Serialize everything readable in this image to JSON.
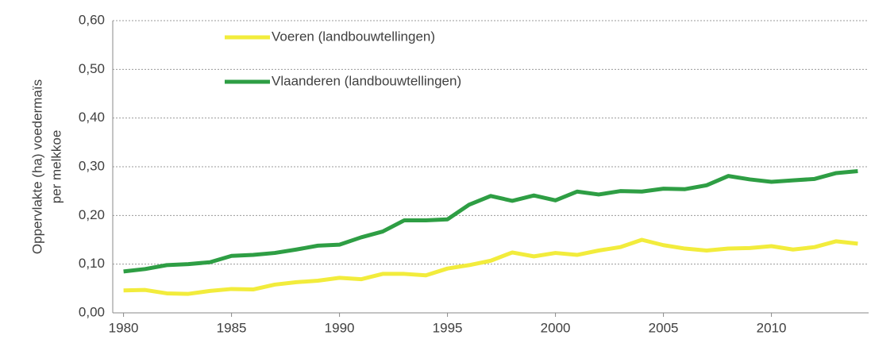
{
  "chart_data": {
    "type": "line",
    "ylabel": [
      "Oppervlakte (ha) voedermaïs",
      "per melkkoe"
    ],
    "x": [
      1980,
      1981,
      1982,
      1983,
      1984,
      1985,
      1986,
      1987,
      1988,
      1989,
      1990,
      1991,
      1992,
      1993,
      1994,
      1995,
      1996,
      1997,
      1998,
      1999,
      2000,
      2001,
      2002,
      2003,
      2004,
      2005,
      2006,
      2007,
      2008,
      2009,
      2010,
      2011,
      2012,
      2013,
      2014
    ],
    "series": [
      {
        "name": "Voeren (landbouwtellingen)",
        "color": "#f2ec3c",
        "values": [
          0.046,
          0.047,
          0.04,
          0.039,
          0.045,
          0.049,
          0.048,
          0.058,
          0.063,
          0.066,
          0.072,
          0.069,
          0.08,
          0.08,
          0.077,
          0.091,
          0.098,
          0.107,
          0.124,
          0.116,
          0.123,
          0.119,
          0.128,
          0.135,
          0.15,
          0.139,
          0.132,
          0.128,
          0.132,
          0.133,
          0.137,
          0.13,
          0.135,
          0.147,
          0.142
        ]
      },
      {
        "name": "Vlaanderen (landbouwtellingen)",
        "color": "#2e9e44",
        "values": [
          0.085,
          0.09,
          0.098,
          0.1,
          0.104,
          0.117,
          0.119,
          0.123,
          0.13,
          0.138,
          0.14,
          0.155,
          0.167,
          0.19,
          0.19,
          0.192,
          0.222,
          0.24,
          0.23,
          0.241,
          0.231,
          0.249,
          0.243,
          0.25,
          0.249,
          0.255,
          0.254,
          0.262,
          0.281,
          0.274,
          0.269,
          0.272,
          0.275,
          0.287,
          0.291
        ]
      }
    ],
    "xlim": [
      1979.5,
      2014.5
    ],
    "xticks": [
      1980,
      1985,
      1990,
      1995,
      2000,
      2005,
      2010
    ],
    "ylim": [
      0,
      0.6
    ],
    "yticks": [
      {
        "value": 0,
        "label": "0,00"
      },
      {
        "value": 0.1,
        "label": "0,10"
      },
      {
        "value": 0.2,
        "label": "0,20"
      },
      {
        "value": 0.3,
        "label": "0,30"
      },
      {
        "value": 0.4,
        "label": "0,40"
      },
      {
        "value": 0.5,
        "label": "0,50"
      },
      {
        "value": 0.6,
        "label": "0,60"
      }
    ],
    "grid": true,
    "legend": "top-left"
  }
}
